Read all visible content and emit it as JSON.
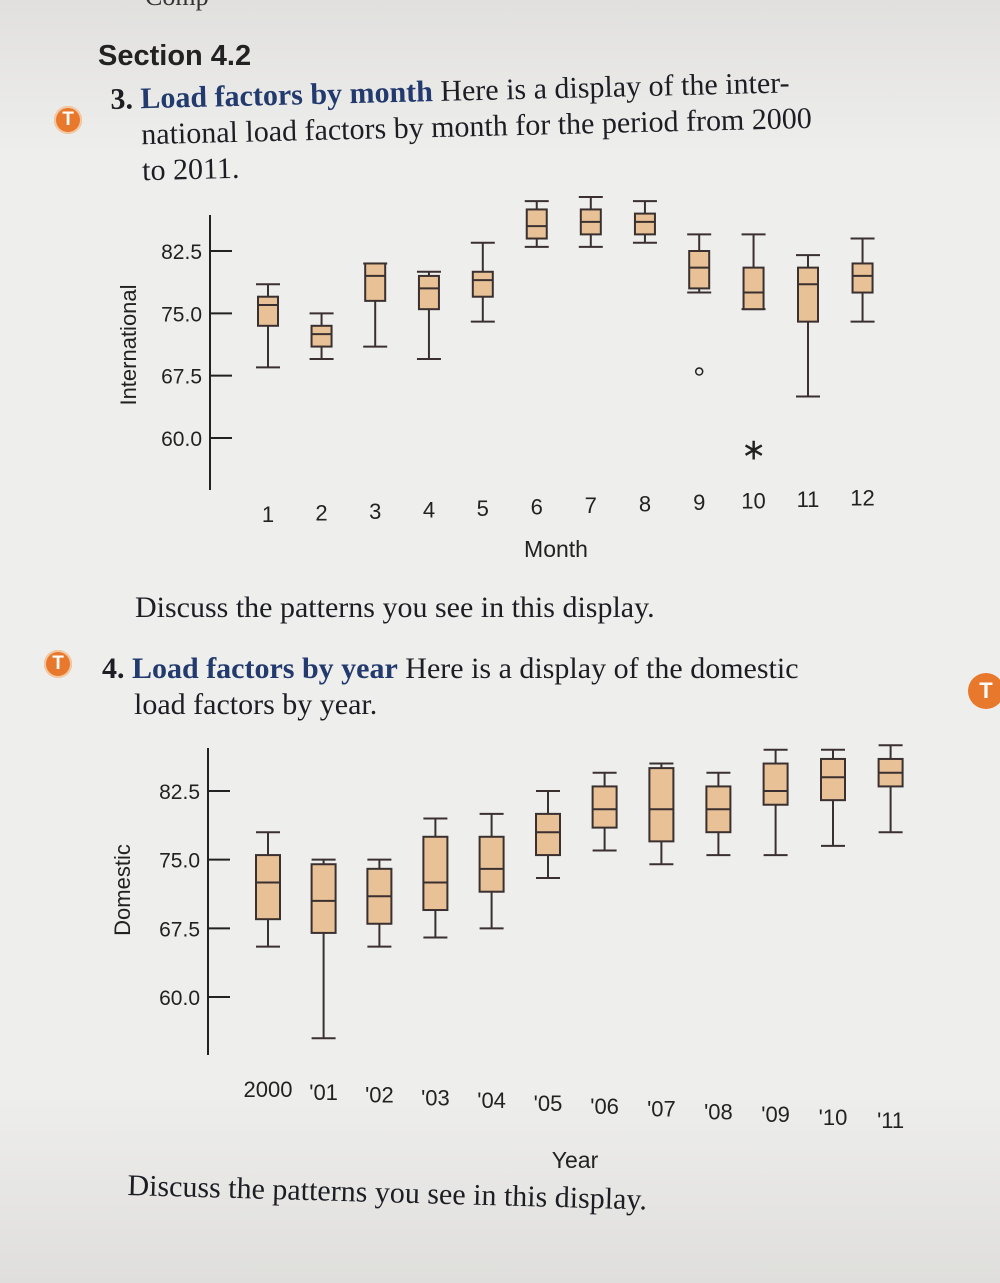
{
  "header": {
    "cut_off_text": "Comp",
    "section_title": "Section 4.2"
  },
  "badge_letter": "T",
  "problems": [
    {
      "number": "3.",
      "title": "Load factors by month",
      "body_lines": [
        "Here is a display of the inter-",
        "national load factors by month for the period from 2000",
        "to 2011."
      ],
      "question": "Discuss the patterns you see in this display."
    },
    {
      "number": "4.",
      "title": "Load factors by year",
      "body_lines": [
        "Here is a display of the domestic",
        "load factors by year."
      ],
      "question": "Discuss the patterns you see in this display."
    }
  ],
  "chart_data": [
    {
      "type": "boxplot",
      "ylabel": "International",
      "xlabel": "Month",
      "yticks": [
        "82.5",
        "75.0",
        "67.5",
        "60.0"
      ],
      "ytick_values": [
        82.5,
        75.0,
        67.5,
        60.0
      ],
      "categories": [
        "1",
        "2",
        "3",
        "4",
        "5",
        "6",
        "7",
        "8",
        "9",
        "10",
        "11",
        "12"
      ],
      "boxes": [
        {
          "min": 68.5,
          "q1": 73.5,
          "median": 76.0,
          "q3": 77.0,
          "max": 78.5
        },
        {
          "min": 69.5,
          "q1": 71.0,
          "median": 72.5,
          "q3": 73.5,
          "max": 75.0
        },
        {
          "min": 71.0,
          "q1": 76.5,
          "median": 79.5,
          "q3": 81.0,
          "max": 81.0
        },
        {
          "min": 69.5,
          "q1": 75.5,
          "median": 78.0,
          "q3": 79.5,
          "max": 80.0
        },
        {
          "min": 74.0,
          "q1": 77.0,
          "median": 79.0,
          "q3": 80.0,
          "max": 83.5
        },
        {
          "min": 83.0,
          "q1": 84.0,
          "median": 85.5,
          "q3": 87.5,
          "max": 88.5
        },
        {
          "min": 83.0,
          "q1": 84.5,
          "median": 86.0,
          "q3": 87.5,
          "max": 89.0
        },
        {
          "min": 83.5,
          "q1": 84.5,
          "median": 86.0,
          "q3": 87.0,
          "max": 88.5
        },
        {
          "min": 77.5,
          "q1": 78.0,
          "median": 80.5,
          "q3": 82.5,
          "max": 84.5
        },
        {
          "min": 75.5,
          "q1": 75.5,
          "median": 77.5,
          "q3": 80.5,
          "max": 84.5
        },
        {
          "min": 65.0,
          "q1": 74.0,
          "median": 78.5,
          "q3": 80.5,
          "max": 82.0
        },
        {
          "min": 74.0,
          "q1": 77.5,
          "median": 79.5,
          "q3": 81.0,
          "max": 84.0
        }
      ],
      "outliers": [
        {
          "category": "9",
          "value": 68.0,
          "marker": "circle"
        },
        {
          "category": "10",
          "value": 59.0,
          "marker": "star"
        }
      ]
    },
    {
      "type": "boxplot",
      "ylabel": "Domestic",
      "xlabel": "Year",
      "yticks": [
        "82.5",
        "75.0",
        "67.5",
        "60.0"
      ],
      "ytick_values": [
        82.5,
        75.0,
        67.5,
        60.0
      ],
      "categories": [
        "2000",
        "'01",
        "'02",
        "'03",
        "'04",
        "'05",
        "'06",
        "'07",
        "'08",
        "'09",
        "'10",
        "'11"
      ],
      "boxes": [
        {
          "min": 65.5,
          "q1": 68.5,
          "median": 72.5,
          "q3": 75.5,
          "max": 78.0
        },
        {
          "min": 55.5,
          "q1": 67.0,
          "median": 70.5,
          "q3": 74.5,
          "max": 75.0
        },
        {
          "min": 65.5,
          "q1": 68.0,
          "median": 71.0,
          "q3": 74.0,
          "max": 75.0
        },
        {
          "min": 66.5,
          "q1": 69.5,
          "median": 72.5,
          "q3": 77.5,
          "max": 79.5
        },
        {
          "min": 67.5,
          "q1": 71.5,
          "median": 74.0,
          "q3": 77.5,
          "max": 80.0
        },
        {
          "min": 73.0,
          "q1": 75.5,
          "median": 78.0,
          "q3": 80.0,
          "max": 82.5
        },
        {
          "min": 76.0,
          "q1": 78.5,
          "median": 80.5,
          "q3": 83.0,
          "max": 84.5
        },
        {
          "min": 74.5,
          "q1": 77.0,
          "median": 80.5,
          "q3": 85.0,
          "max": 85.5
        },
        {
          "min": 75.5,
          "q1": 78.0,
          "median": 80.5,
          "q3": 83.0,
          "max": 84.5
        },
        {
          "min": 75.5,
          "q1": 81.0,
          "median": 82.5,
          "q3": 85.5,
          "max": 87.0
        },
        {
          "min": 76.5,
          "q1": 81.5,
          "median": 84.0,
          "q3": 86.0,
          "max": 87.0
        },
        {
          "min": 78.0,
          "q1": 83.0,
          "median": 84.5,
          "q3": 86.0,
          "max": 87.5
        }
      ],
      "outliers": []
    }
  ],
  "colors": {
    "box_fill": "#e8c196",
    "box_stroke": "#3a3030",
    "badge": "#e8782b",
    "title_blue": "#233a6e"
  }
}
